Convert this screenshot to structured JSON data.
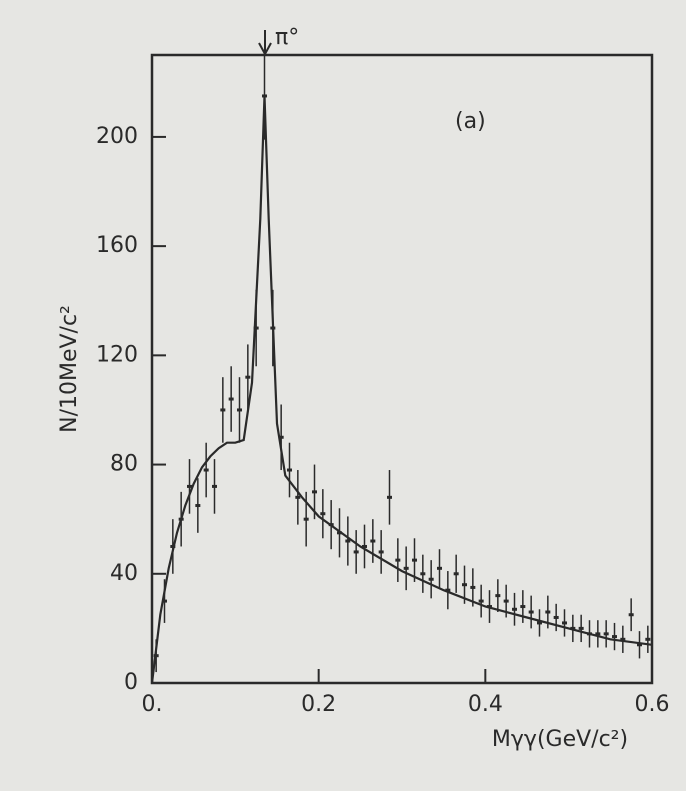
{
  "chart_data": {
    "type": "errorbar",
    "y_label": "N/10MeV/c²",
    "x_label": "Mγγ(GeV/c²)",
    "annotations": [
      "π°",
      "(a)"
    ],
    "color": "#2a2a2a",
    "xlim": [
      0,
      0.6
    ],
    "ylim": [
      0,
      230
    ],
    "xticks": [
      {
        "value": 0,
        "label": "0."
      },
      0.2,
      0.4,
      0.6
    ],
    "yticks": [
      0,
      40,
      80,
      120,
      160,
      200
    ],
    "x": [
      0.005,
      0.015,
      0.025,
      0.035,
      0.045,
      0.055,
      0.065,
      0.075,
      0.085,
      0.095,
      0.105,
      0.115,
      0.125,
      0.135,
      0.145,
      0.155,
      0.165,
      0.175,
      0.185,
      0.195,
      0.205,
      0.215,
      0.225,
      0.235,
      0.245,
      0.255,
      0.265,
      0.275,
      0.285,
      0.295,
      0.305,
      0.315,
      0.325,
      0.335,
      0.345,
      0.355,
      0.365,
      0.375,
      0.385,
      0.395,
      0.405,
      0.415,
      0.425,
      0.435,
      0.445,
      0.455,
      0.465,
      0.475,
      0.485,
      0.495,
      0.505,
      0.515,
      0.525,
      0.535,
      0.545,
      0.555,
      0.565,
      0.575,
      0.585,
      0.595
    ],
    "values": [
      10,
      30,
      50,
      60,
      72,
      65,
      78,
      72,
      100,
      104,
      100,
      112,
      130,
      215,
      130,
      90,
      78,
      68,
      60,
      70,
      62,
      58,
      55,
      52,
      48,
      50,
      52,
      48,
      68,
      45,
      42,
      45,
      40,
      38,
      42,
      34,
      40,
      36,
      35,
      30,
      28,
      32,
      30,
      27,
      28,
      26,
      22,
      26,
      24,
      22,
      20,
      20,
      18,
      18,
      18,
      17,
      16,
      25,
      14,
      16
    ],
    "errors": [
      6,
      8,
      10,
      10,
      10,
      10,
      10,
      10,
      12,
      12,
      12,
      12,
      14,
      16,
      14,
      12,
      10,
      10,
      10,
      10,
      9,
      9,
      9,
      9,
      8,
      8,
      8,
      8,
      10,
      8,
      8,
      8,
      7,
      7,
      7,
      7,
      7,
      7,
      7,
      6,
      6,
      6,
      6,
      6,
      6,
      6,
      5,
      6,
      5,
      5,
      5,
      5,
      5,
      5,
      5,
      5,
      5,
      6,
      5,
      5
    ],
    "fit_x": [
      0,
      0.01,
      0.02,
      0.03,
      0.04,
      0.05,
      0.06,
      0.07,
      0.08,
      0.09,
      0.1,
      0.11,
      0.12,
      0.13,
      0.135,
      0.14,
      0.15,
      0.16,
      0.18,
      0.2,
      0.25,
      0.3,
      0.35,
      0.4,
      0.45,
      0.5,
      0.55,
      0.6
    ],
    "fit_values": [
      0,
      25,
      42,
      55,
      65,
      73,
      79,
      83,
      86,
      88,
      88,
      89,
      110,
      170,
      215,
      170,
      95,
      76,
      68,
      61,
      50,
      41,
      34,
      28,
      24,
      20,
      16,
      14
    ]
  }
}
